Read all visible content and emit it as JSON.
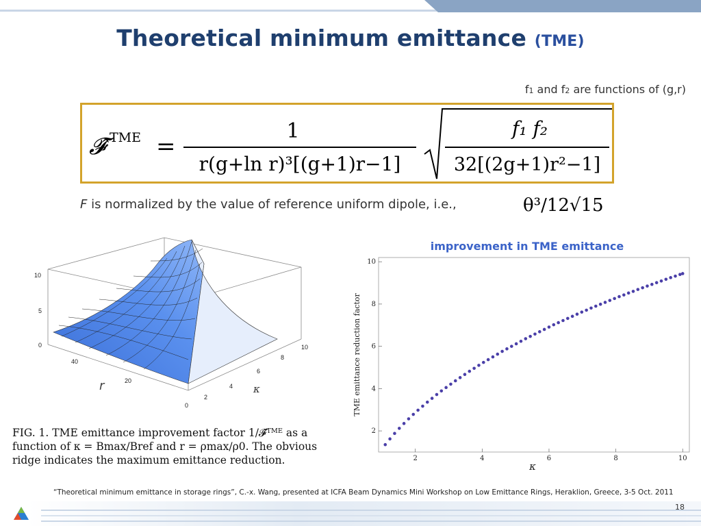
{
  "slide": {
    "title_main": "Theoretical minimum emittance",
    "title_sub": "(TME)",
    "page_number": "18"
  },
  "note": {
    "f1_prefix": "f",
    "f1_sub": "1",
    "and": " and f",
    "f2_sub": "2",
    "suffix": " are functions of (g,r)"
  },
  "formula": {
    "lhs": "𝓕̂",
    "lhs_sup": "TME",
    "equals": "=",
    "frac1_num": "1",
    "frac1_den": "r(g+ln r)³[(g+1)r−1]",
    "frac2_num": "f₁ f₂",
    "frac2_den": "32[(2g+1)r²−1]"
  },
  "normalization": {
    "var": "F",
    "text": " is normalized by the value of reference uniform dipole, i.e.,",
    "eq": "θ³/12√15"
  },
  "surface_plot": {
    "z_ticks": [
      "10",
      "5",
      "0"
    ],
    "r_ticks": [
      "40",
      "20",
      "0"
    ],
    "kappa_ticks": [
      "2",
      "4",
      "6",
      "8",
      "10"
    ],
    "r_label": "r",
    "kappa_label": "κ"
  },
  "caption": {
    "line1": "FIG. 1.  TME emittance improvement factor 1/𝓕̂ᵀᴹᴱ as a",
    "line2": "function of κ = Bmax/Bref and r = ρmax/ρ0.  The obvious",
    "line3": "ridge indicates the maximum emittance reduction."
  },
  "footer": {
    "reference": "“Theoretical minimum emittance in storage rings”, C.-x. Wang, presented at ICFA Beam Dynamics Mini Workshop on Low Emittance Rings, Heraklion, Greece, 3-5 Oct. 2011"
  },
  "colors": {
    "title": "#1f3f6e",
    "accent_bar": "#8aa4c4",
    "formula_border": "#d3a32b",
    "plot_title": "#3b63c8",
    "points": "#4a3fa8",
    "surface": "#4f86e8"
  },
  "chart_data": {
    "type": "scatter",
    "title": "improvement in TME emittance",
    "xlabel": "κ",
    "ylabel": "TME emittance reduction factor",
    "xlim": [
      0.9,
      10.2
    ],
    "ylim": [
      1,
      10.2
    ],
    "xticks": [
      2,
      4,
      6,
      8,
      10
    ],
    "yticks": [
      2,
      4,
      6,
      8,
      10
    ],
    "grid": false,
    "series": [
      {
        "x": [
          1.1,
          1.24,
          1.38,
          1.52,
          1.66,
          1.8,
          1.94,
          2.08,
          2.22,
          2.36,
          2.5,
          2.64,
          2.78,
          2.92,
          3.06,
          3.2,
          3.34,
          3.48,
          3.62,
          3.76,
          3.9,
          4.04,
          4.18,
          4.32,
          4.46,
          4.6,
          4.74,
          4.88,
          5.02,
          5.16,
          5.3,
          5.44,
          5.58,
          5.72,
          5.86,
          6.0,
          6.14,
          6.28,
          6.42,
          6.56,
          6.7,
          6.84,
          6.98,
          7.12,
          7.26,
          7.4,
          7.54,
          7.68,
          7.82,
          7.96,
          8.1,
          8.24,
          8.38,
          8.52,
          8.66,
          8.8,
          8.94,
          9.08,
          9.22,
          9.36,
          9.5,
          9.64,
          9.78,
          9.92,
          10.0
        ],
        "y": [
          1.35,
          1.62,
          1.88,
          2.12,
          2.35,
          2.57,
          2.78,
          2.98,
          3.17,
          3.36,
          3.54,
          3.72,
          3.89,
          4.05,
          4.21,
          4.37,
          4.52,
          4.67,
          4.82,
          4.96,
          5.1,
          5.24,
          5.37,
          5.5,
          5.63,
          5.76,
          5.88,
          6.0,
          6.12,
          6.24,
          6.36,
          6.47,
          6.58,
          6.69,
          6.8,
          6.91,
          7.02,
          7.12,
          7.22,
          7.32,
          7.42,
          7.52,
          7.62,
          7.71,
          7.81,
          7.9,
          7.99,
          8.08,
          8.17,
          8.26,
          8.35,
          8.43,
          8.52,
          8.6,
          8.69,
          8.77,
          8.85,
          8.93,
          9.01,
          9.09,
          9.17,
          9.25,
          9.32,
          9.4,
          9.44
        ]
      }
    ]
  }
}
